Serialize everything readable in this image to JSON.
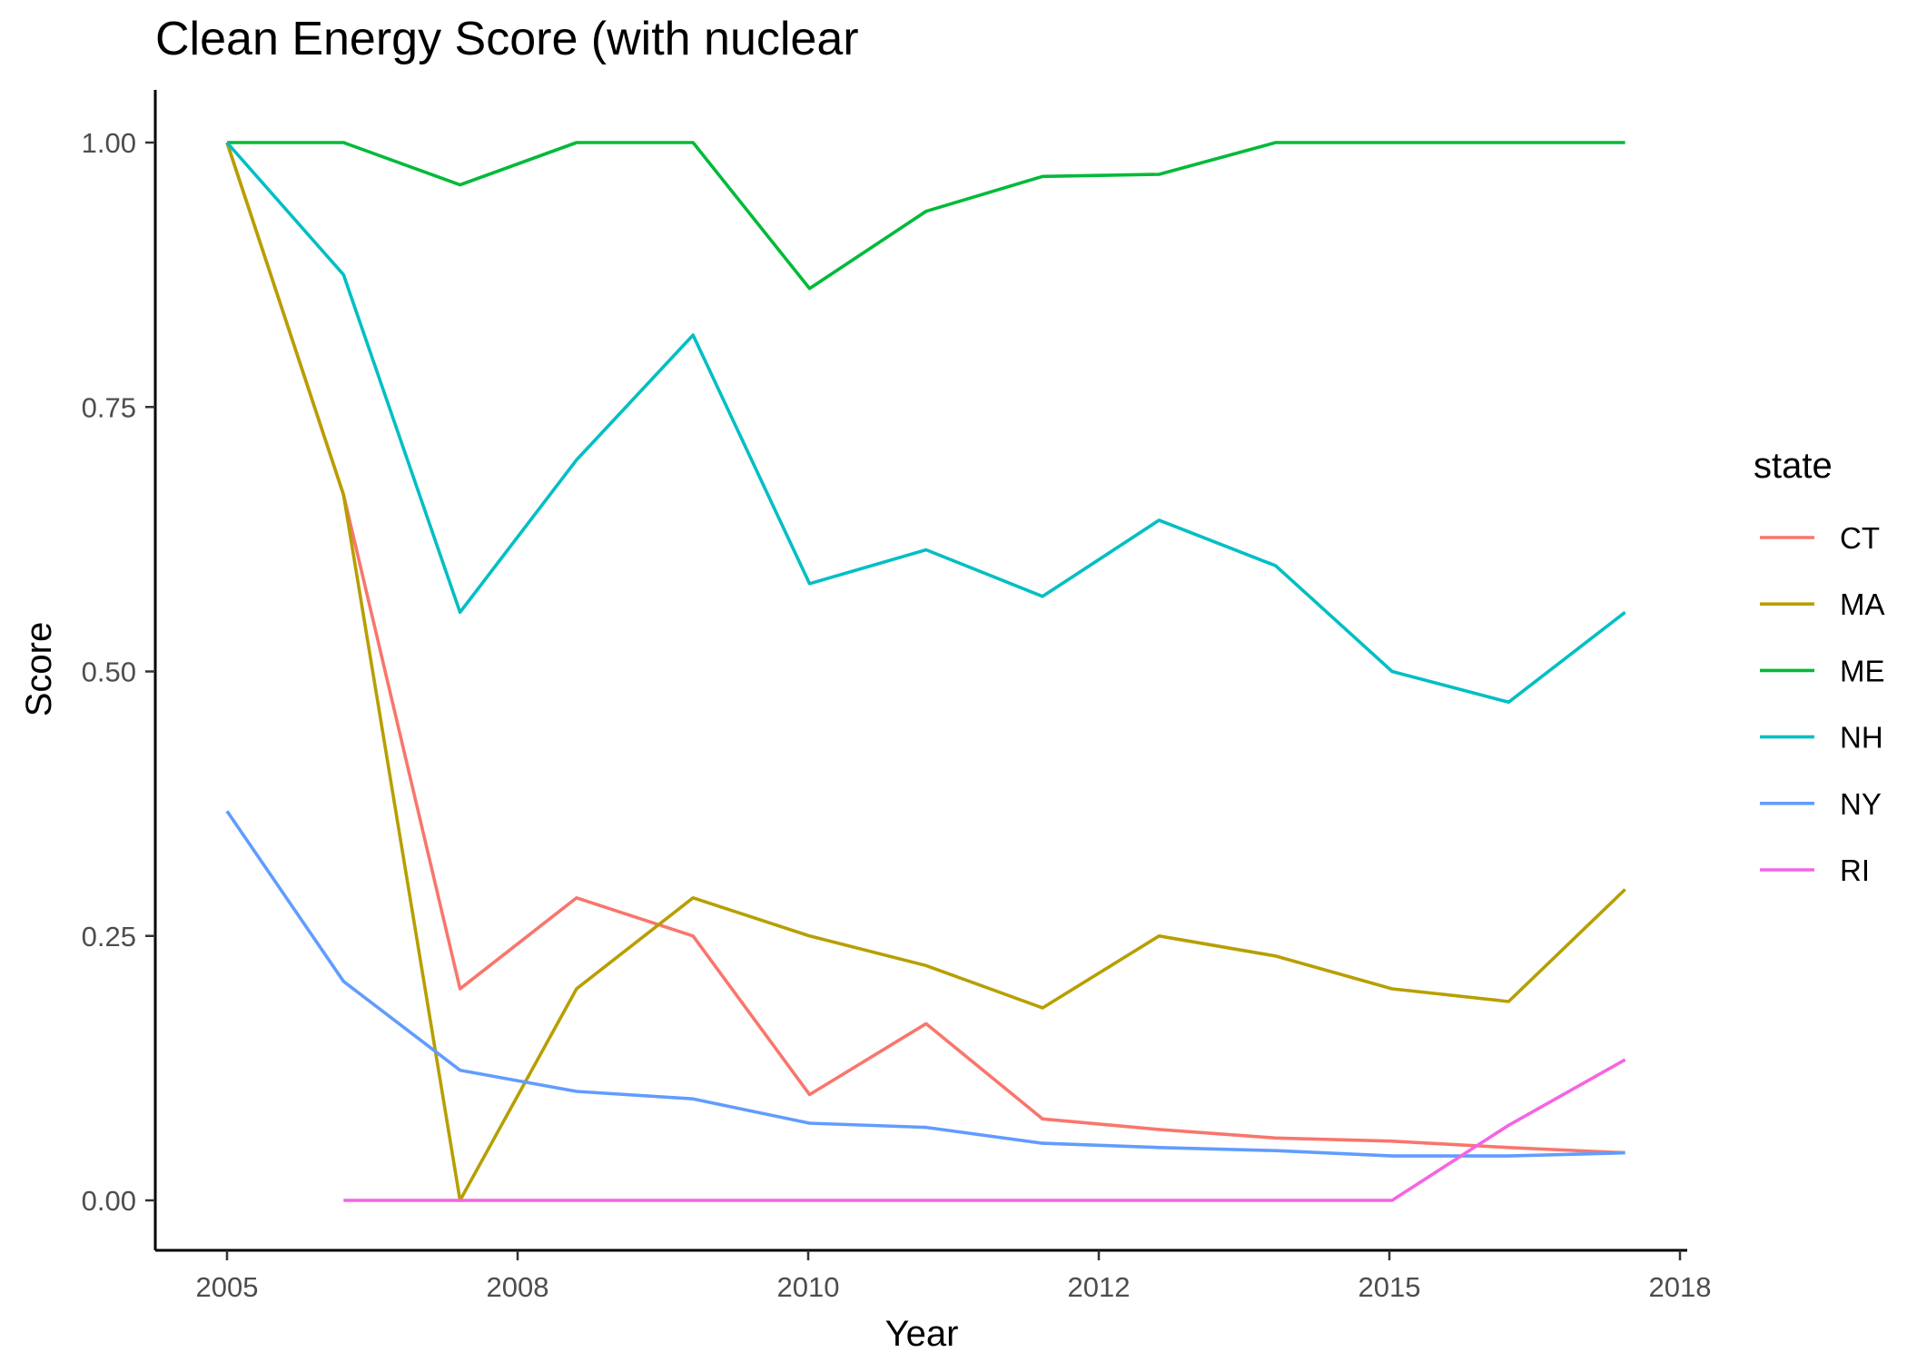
{
  "chart_data": {
    "type": "line",
    "title": "Clean Energy Score (with nuclear",
    "xlabel": "Year",
    "ylabel": "Score",
    "ylim": [
      0,
      1
    ],
    "yticks": [
      0,
      0.25,
      0.5,
      0.75,
      1
    ],
    "ytick_labels": [
      "0.00",
      "0.25",
      "0.50",
      "0.75",
      "1.00"
    ],
    "x_tick_labels": [
      "2005",
      "2008",
      "2010",
      "2012",
      "2015",
      "2018"
    ],
    "grid": false,
    "legend": {
      "title": "state",
      "position": "right"
    },
    "x": [
      1,
      2,
      3,
      4,
      5,
      6,
      7,
      8,
      9,
      10,
      11,
      12,
      13,
      14
    ],
    "series": [
      {
        "name": "CT",
        "color": "#F8766D",
        "values": [
          1.0,
          0.667,
          0.2,
          0.286,
          0.25,
          0.1,
          0.167,
          0.077,
          0.067,
          0.059,
          0.056,
          0.05,
          0.045,
          null
        ]
      },
      {
        "name": "MA",
        "color": "#B79F00",
        "values": [
          1.0,
          0.667,
          0.0,
          0.2,
          0.286,
          0.25,
          0.222,
          0.182,
          0.25,
          0.231,
          0.2,
          0.188,
          0.294,
          null
        ]
      },
      {
        "name": "ME",
        "color": "#00BA38",
        "values": [
          1.0,
          1.0,
          0.96,
          1.0,
          1.0,
          0.862,
          0.935,
          0.968,
          0.97,
          1.0,
          1.0,
          1.0,
          1.0,
          null
        ]
      },
      {
        "name": "NH",
        "color": "#00BFC4",
        "values": [
          1.0,
          0.875,
          0.556,
          0.7,
          0.818,
          0.583,
          0.615,
          0.571,
          0.643,
          0.6,
          0.5,
          0.471,
          0.556,
          null
        ]
      },
      {
        "name": "NY",
        "color": "#619CFF",
        "values": [
          0.368,
          0.207,
          0.123,
          0.103,
          0.096,
          0.073,
          0.069,
          0.054,
          0.05,
          0.047,
          0.042,
          0.042,
          0.045,
          null
        ]
      },
      {
        "name": "RI",
        "color": "#F564E3",
        "values": [
          null,
          0.0,
          0.0,
          0.0,
          0.0,
          0.0,
          0.0,
          0.0,
          0.0,
          0.0,
          0.0,
          0.071,
          0.133,
          null
        ]
      }
    ]
  }
}
